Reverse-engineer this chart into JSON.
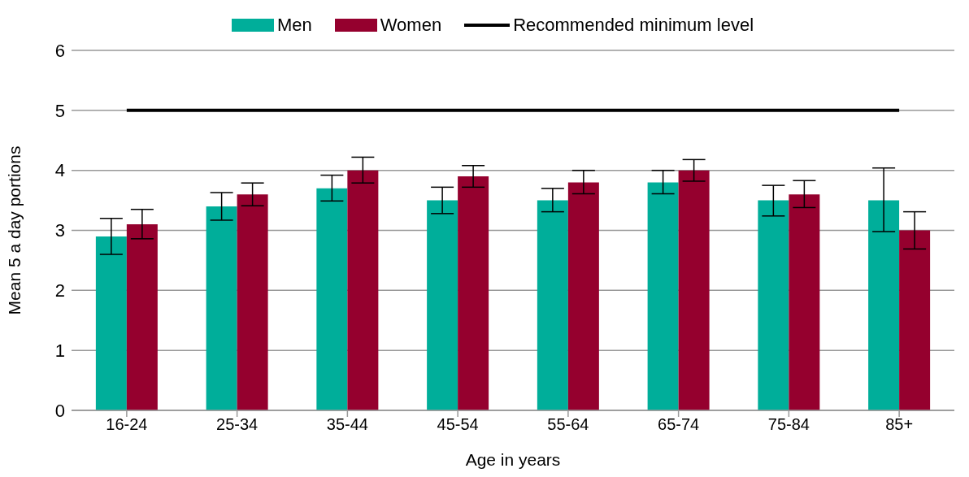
{
  "chart_data": {
    "type": "bar",
    "xlabel": "Age in years",
    "ylabel": "Mean 5 a day portions",
    "categories": [
      "16-24",
      "25-34",
      "35-44",
      "45-54",
      "55-64",
      "65-74",
      "75-84",
      "85+"
    ],
    "series": [
      {
        "name": "Men",
        "color": "#00ae9a",
        "values": [
          2.9,
          3.4,
          3.7,
          3.5,
          3.5,
          3.8,
          3.5,
          3.5
        ],
        "errors": [
          [
            2.6,
            3.2
          ],
          [
            3.17,
            3.63
          ],
          [
            3.49,
            3.92
          ],
          [
            3.28,
            3.72
          ],
          [
            3.31,
            3.7
          ],
          [
            3.61,
            4.0
          ],
          [
            3.24,
            3.75
          ],
          [
            2.98,
            4.04
          ]
        ]
      },
      {
        "name": "Women",
        "color": "#95002e",
        "values": [
          3.1,
          3.6,
          4.0,
          3.9,
          3.8,
          4.0,
          3.6,
          3.0
        ],
        "errors": [
          [
            2.86,
            3.35
          ],
          [
            3.41,
            3.79
          ],
          [
            3.79,
            4.22
          ],
          [
            3.72,
            4.08
          ],
          [
            3.61,
            4.0
          ],
          [
            3.82,
            4.18
          ],
          [
            3.38,
            3.83
          ],
          [
            2.69,
            3.31
          ]
        ]
      }
    ],
    "ref_lines": [
      {
        "axis": "y",
        "value": 5,
        "label": "Recommended minimum level",
        "color": "#000000"
      }
    ],
    "ylim": [
      0,
      6
    ],
    "yticks": [
      0,
      1,
      2,
      3,
      4,
      5,
      6
    ],
    "grid": "y",
    "legend": "top"
  }
}
